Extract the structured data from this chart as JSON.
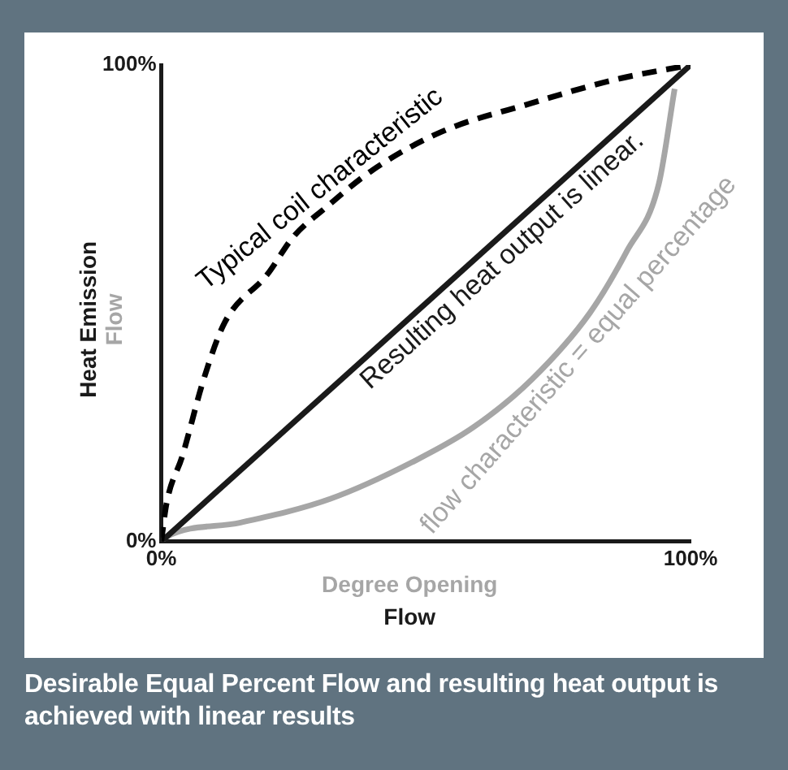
{
  "chart_data": {
    "type": "line",
    "title": "Desirable Equal Percent Flow and resulting heat output is achieved with linear results",
    "xlabel": "Degree Opening",
    "ylabel": "Heat Emission",
    "annotations": [
      "Flow",
      "Flow"
    ],
    "xlim": [
      0,
      100
    ],
    "ylim": [
      0,
      100
    ],
    "xticks": [
      {
        "value": 0,
        "label": "0%"
      },
      {
        "value": 100,
        "label": "100%"
      }
    ],
    "yticks": [
      {
        "value": 0,
        "label": "0%"
      },
      {
        "value": 100,
        "label": "100%"
      }
    ],
    "grid": false,
    "legend": false,
    "marker": "none",
    "series": [
      {
        "name": "Typical coil characteristic",
        "color": "#000000",
        "line_style": "dashed",
        "x": [
          0,
          1,
          4,
          8,
          12,
          20,
          25,
          31,
          40,
          53,
          70,
          86,
          100
        ],
        "values": [
          0,
          8,
          18,
          34,
          46,
          56,
          64,
          70,
          78,
          86,
          92,
          97,
          100
        ]
      },
      {
        "name": "Resulting heat output is linear.",
        "color": "#1a1a1a",
        "line_style": "solid",
        "x": [
          0,
          100
        ],
        "values": [
          0,
          100
        ]
      },
      {
        "name": "flow characteristic = equal percentage",
        "color": "#a6a6a6",
        "line_style": "solid",
        "x": [
          0,
          1,
          15,
          32,
          48,
          59,
          70,
          81,
          88,
          94,
          97
        ],
        "values": [
          0,
          1,
          4,
          9,
          17,
          24,
          34,
          48,
          61,
          75,
          95
        ]
      }
    ]
  }
}
